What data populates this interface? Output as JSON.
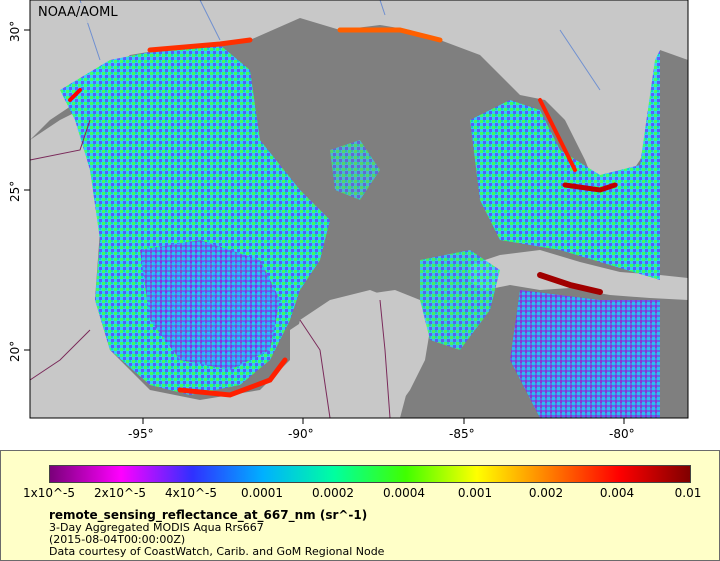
{
  "map": {
    "title_badge": "NOAA/AOML",
    "x_ticks": [
      "-95°",
      "-90°",
      "-85°",
      "-80°"
    ],
    "y_ticks": [
      "30°",
      "25°",
      "20°"
    ],
    "colors": {
      "water": "#7f7f7f",
      "land": "#c8c8c8",
      "border": "#7a2a5a",
      "river": "#6f8fd0",
      "frame": "#000000"
    }
  },
  "legend": {
    "colorbar_labels": [
      "1x10^-5",
      "2x10^-5",
      "4x10^-5",
      "0.0001",
      "0.0002",
      "0.0004",
      "0.001",
      "0.002",
      "0.004",
      "0.01"
    ],
    "colorbar_stops": [
      "#7a007a",
      "#ff00ff",
      "#3030ff",
      "#00b0ff",
      "#00ffa0",
      "#40ff00",
      "#ffff00",
      "#ff8000",
      "#ff0000",
      "#800000"
    ],
    "variable": "remote_sensing_reflectance_at_667_nm (sr^-1)",
    "description": "3-Day Aggregated MODIS Aqua Rrs667",
    "time": "(2015-08-04T00:00:00Z)",
    "credit": "Data courtesy of CoastWatch, Carib. and GoM Regional Node"
  }
}
